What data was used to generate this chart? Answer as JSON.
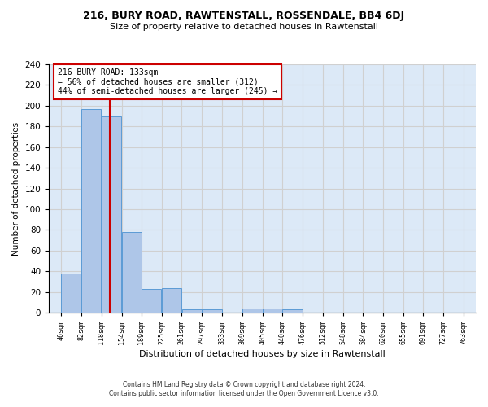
{
  "title1": "216, BURY ROAD, RAWTENSTALL, ROSSENDALE, BB4 6DJ",
  "title2": "Size of property relative to detached houses in Rawtenstall",
  "xlabel": "Distribution of detached houses by size in Rawtenstall",
  "ylabel": "Number of detached properties",
  "footer1": "Contains HM Land Registry data © Crown copyright and database right 2024.",
  "footer2": "Contains public sector information licensed under the Open Government Licence v3.0.",
  "annotation_line1": "216 BURY ROAD: 133sqm",
  "annotation_line2": "← 56% of detached houses are smaller (312)",
  "annotation_line3": "44% of semi-detached houses are larger (245) →",
  "property_size": 133,
  "bin_edges": [
    46,
    82,
    118,
    154,
    189,
    225,
    261,
    297,
    333,
    369,
    405,
    440,
    476,
    512,
    548,
    584,
    620,
    655,
    691,
    727,
    763
  ],
  "bar_values": [
    38,
    197,
    190,
    78,
    23,
    24,
    3,
    3,
    0,
    4,
    4,
    3,
    0,
    0,
    0,
    0,
    0,
    0,
    0,
    0
  ],
  "bar_color": "#aec6e8",
  "bar_edge_color": "#5b9bd5",
  "grid_color": "#d0d0d0",
  "background_color": "#dce9f7",
  "annotation_box_color": "#cc0000",
  "vline_color": "#cc0000",
  "ylim": [
    0,
    240
  ],
  "fig_width": 6.0,
  "fig_height": 5.0,
  "dpi": 100
}
